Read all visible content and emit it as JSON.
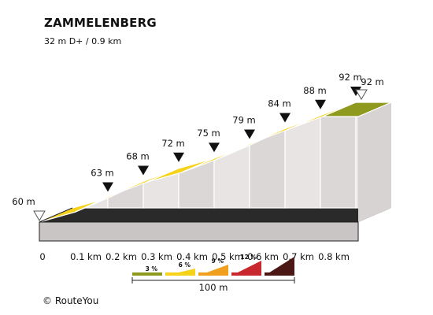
{
  "title": "ZAMMELENBERG",
  "subtitle": "32 m D+ / 0.9 km",
  "credit": "© RouteYou",
  "chart_data": {
    "type": "area",
    "title": "ZAMMELENBERG",
    "subtitle": "32 m D+ / 0.9 km",
    "x_unit": "km",
    "y_unit": "m",
    "xlim": [
      0,
      0.9
    ],
    "ylim": [
      60,
      92
    ],
    "x_tick_labels": [
      "0",
      "0.1 km",
      "0.2 km",
      "0.3 km",
      "0.4 km",
      "0.5 km",
      "0.6 km",
      "0.7 km",
      "0.8 km"
    ],
    "x_ticks": [
      0,
      0.1,
      0.2,
      0.3,
      0.4,
      0.5,
      0.6,
      0.7,
      0.8
    ],
    "elevation_profile": [
      {
        "x": 0,
        "y": 60
      },
      {
        "x": 0.1,
        "y": 63
      },
      {
        "x": 0.2,
        "y": 68
      },
      {
        "x": 0.3,
        "y": 72
      },
      {
        "x": 0.4,
        "y": 75
      },
      {
        "x": 0.5,
        "y": 79
      },
      {
        "x": 0.6,
        "y": 84
      },
      {
        "x": 0.7,
        "y": 88
      },
      {
        "x": 0.8,
        "y": 92
      },
      {
        "x": 0.9,
        "y": 92
      }
    ],
    "segments": [
      {
        "from": 0,
        "to": 0.1,
        "color": "#f7d21a"
      },
      {
        "from": 0.1,
        "to": 0.2,
        "color": "#f7d21a"
      },
      {
        "from": 0.2,
        "to": 0.3,
        "color": "#f7d21a"
      },
      {
        "from": 0.3,
        "to": 0.4,
        "color": "#f7d21a"
      },
      {
        "from": 0.4,
        "to": 0.5,
        "color": "#f7d21a"
      },
      {
        "from": 0.5,
        "to": 0.6,
        "color": "#f7d21a"
      },
      {
        "from": 0.6,
        "to": 0.7,
        "color": "#f7d21a"
      },
      {
        "from": 0.7,
        "to": 0.8,
        "color": "#f7d21a"
      },
      {
        "from": 0.8,
        "to": 0.9,
        "color": "#8e9a1e"
      }
    ],
    "markers": [
      {
        "x": 0,
        "label": "60 m",
        "style": "start"
      },
      {
        "x": 0.1,
        "label": "63 m",
        "style": "point"
      },
      {
        "x": 0.2,
        "label": "68 m",
        "style": "point"
      },
      {
        "x": 0.3,
        "label": "72 m",
        "style": "point"
      },
      {
        "x": 0.4,
        "label": "75 m",
        "style": "point"
      },
      {
        "x": 0.5,
        "label": "79 m",
        "style": "point"
      },
      {
        "x": 0.6,
        "label": "84 m",
        "style": "point"
      },
      {
        "x": 0.7,
        "label": "88 m",
        "style": "point"
      },
      {
        "x": 0.8,
        "label": "92 m",
        "style": "point"
      },
      {
        "x": 0.9,
        "label": "92 m",
        "style": "end"
      }
    ],
    "legend": {
      "items": [
        {
          "label": "3 %",
          "color": "#8e9a1e"
        },
        {
          "label": "6 %",
          "color": "#f7d21a"
        },
        {
          "label": "9 %",
          "color": "#f0a01e"
        },
        {
          "label": "12 %",
          "color": "#c8282d"
        },
        {
          "label": "",
          "color": "#4a1714"
        }
      ],
      "scale_label": "100 m"
    }
  }
}
